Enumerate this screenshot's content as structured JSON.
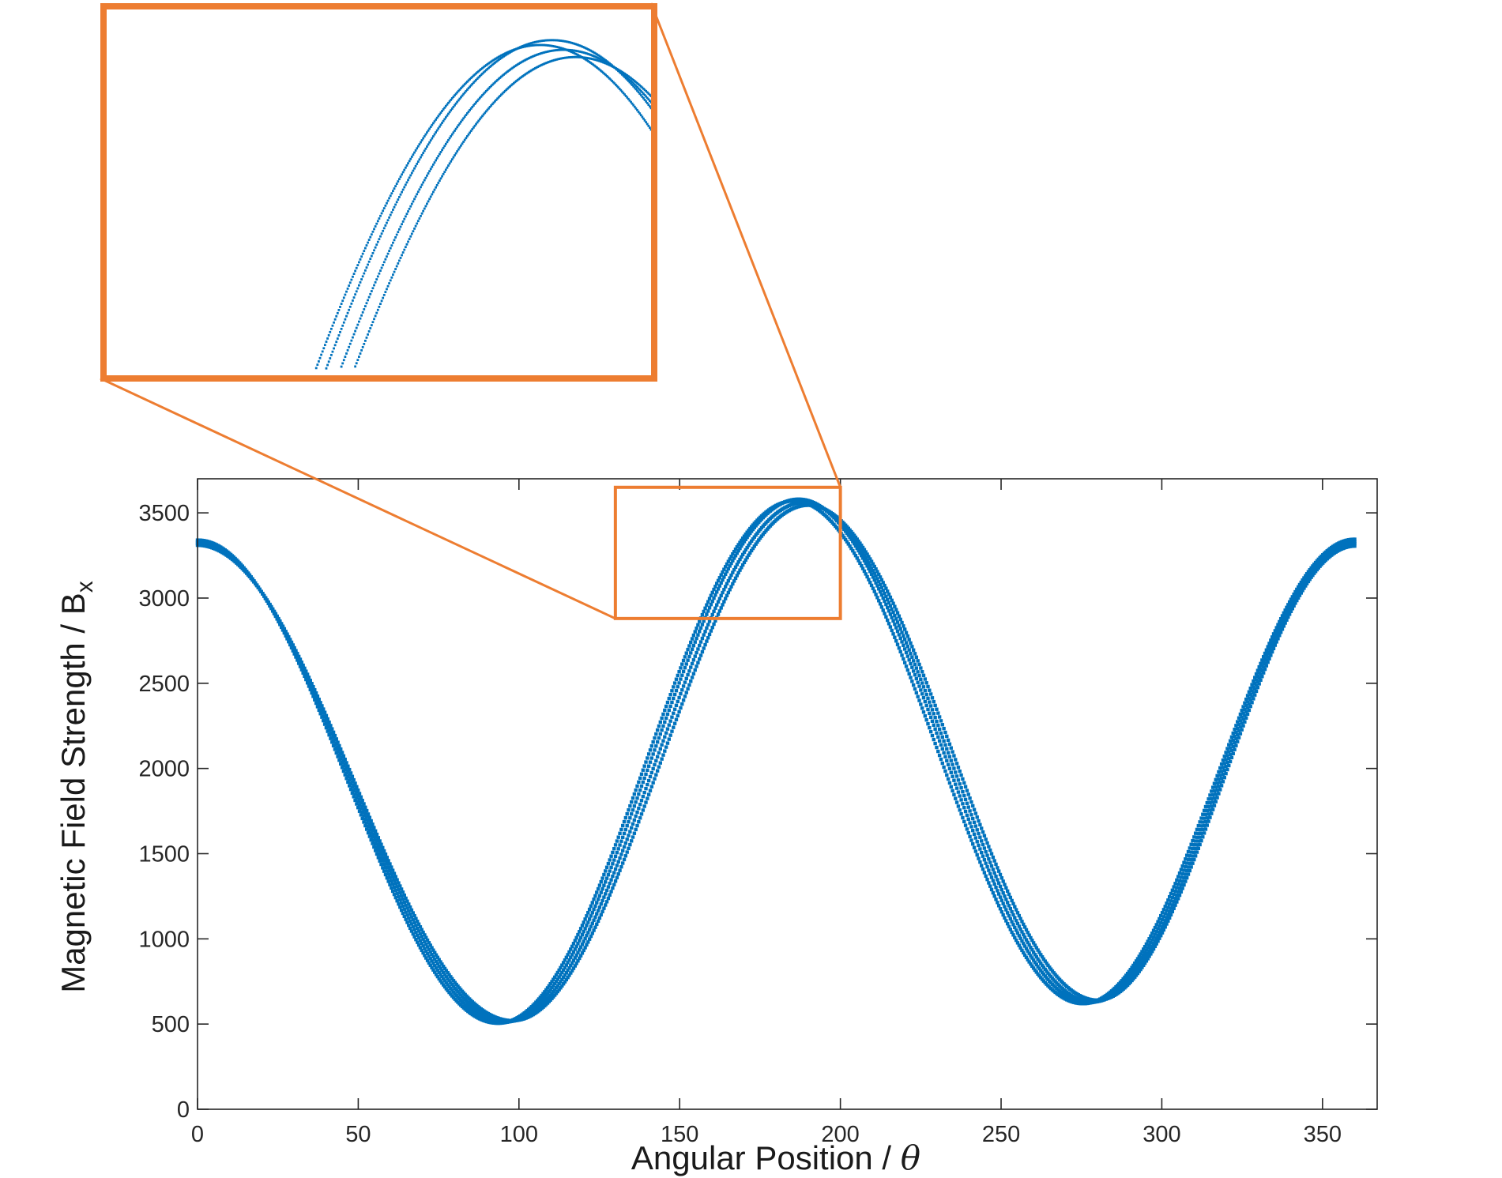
{
  "chart_data": {
    "type": "scatter",
    "title": "",
    "xlabel": "Angular Position / ",
    "xlabel_symbol": "θ",
    "ylabel": "Magnetic Field Strength / B",
    "ylabel_subscript": "x",
    "xlim": [
      0,
      367
    ],
    "ylim": [
      0,
      3700
    ],
    "xticks": [
      "0",
      "50",
      "100",
      "150",
      "200",
      "250",
      "300",
      "350"
    ],
    "yticks": [
      "0",
      "500",
      "1000",
      "1500",
      "2000",
      "2500",
      "3000",
      "3500"
    ],
    "grid": false,
    "legend": "none",
    "x_range_of_data": [
      0,
      360
    ],
    "traces": [
      {
        "min_x": 95,
        "min_y": 510,
        "max_x": 187,
        "max_y": 3580,
        "min2_x": 277,
        "min2_y": 625,
        "start_y": 3330,
        "end_y": 3330
      },
      {
        "min_x": 96.5,
        "min_y": 515,
        "max_x": 188.5,
        "max_y": 3560,
        "min2_x": 278.5,
        "min2_y": 630,
        "start_y": 3320,
        "end_y": 3320
      },
      {
        "min_x": 98,
        "min_y": 520,
        "max_x": 190,
        "max_y": 3545,
        "min2_x": 280,
        "min2_y": 640,
        "start_y": 3310,
        "end_y": 3305
      },
      {
        "min_x": 93.5,
        "min_y": 505,
        "max_x": 185.5,
        "max_y": 3570,
        "min2_x": 275.5,
        "min2_y": 620,
        "start_y": 3340,
        "end_y": 3345
      }
    ],
    "zoom_region": {
      "x": [
        130,
        200
      ],
      "y": [
        2880,
        3650
      ]
    },
    "colors": {
      "markers": "#0072bd",
      "zoom_box": "#ed7d31",
      "axes": "#262626"
    }
  }
}
